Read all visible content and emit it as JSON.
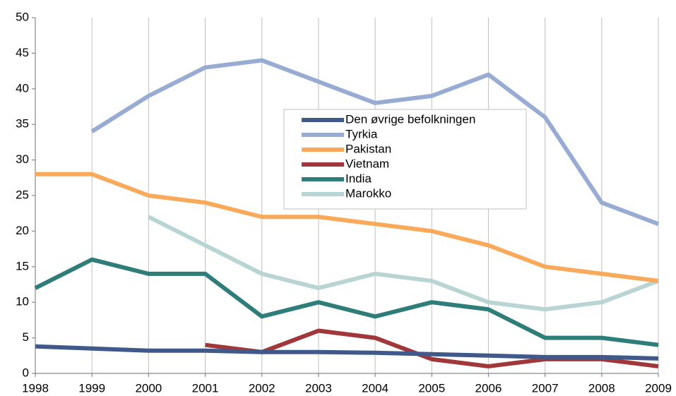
{
  "chart_data": {
    "type": "line",
    "x": [
      1998,
      1999,
      2000,
      2001,
      2002,
      2003,
      2004,
      2005,
      2006,
      2007,
      2008,
      2009
    ],
    "xlim": [
      1998,
      2009
    ],
    "xticks": [
      1998,
      1999,
      2000,
      2001,
      2002,
      2003,
      2004,
      2005,
      2006,
      2007,
      2008,
      2009
    ],
    "ylim": [
      0,
      50
    ],
    "yticks": [
      0,
      5,
      10,
      15,
      20,
      25,
      30,
      35,
      40,
      45,
      50
    ],
    "grid": "x",
    "legend_position": "center",
    "series": [
      {
        "name": "Den øvrige befolkningen",
        "color": "#3f5a8a",
        "values": [
          3.8,
          3.5,
          3.2,
          3.2,
          3.0,
          3.0,
          2.9,
          2.7,
          2.5,
          2.3,
          2.3,
          2.1
        ]
      },
      {
        "name": "Tyrkia",
        "color": "#98abd3",
        "values": [
          null,
          34,
          39,
          43,
          44,
          41,
          38,
          39,
          42,
          36,
          24,
          21
        ]
      },
      {
        "name": "Pakistan",
        "color": "#f9a95a",
        "values": [
          28,
          28,
          25,
          24,
          22,
          22,
          21,
          20,
          18,
          15,
          14,
          13
        ]
      },
      {
        "name": "Vietnam",
        "color": "#a0373a",
        "values": [
          null,
          null,
          null,
          4,
          3,
          6,
          5,
          2,
          1,
          2,
          2,
          1
        ]
      },
      {
        "name": "India",
        "color": "#2e7d78",
        "values": [
          12,
          16,
          14,
          14,
          8,
          10,
          8,
          10,
          9,
          5,
          5,
          4
        ]
      },
      {
        "name": "Marokko",
        "color": "#b8d5d3",
        "values": [
          null,
          null,
          22,
          18,
          14,
          12,
          14,
          13,
          10,
          9,
          10,
          13
        ]
      }
    ]
  }
}
